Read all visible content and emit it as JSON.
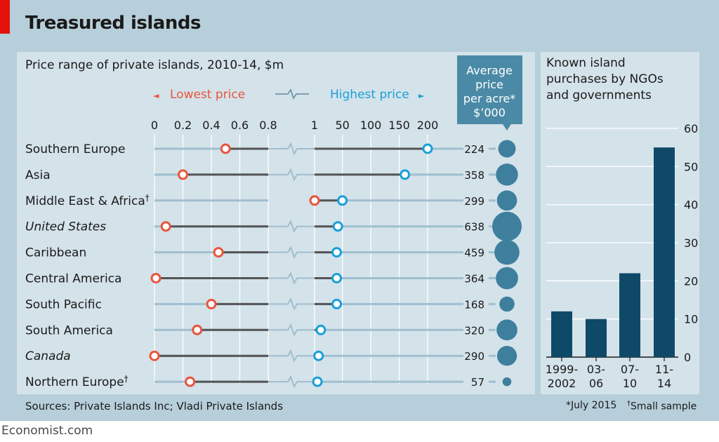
{
  "header": {
    "title": "Treasured islands"
  },
  "chart_data": [
    {
      "type": "dot-range",
      "title": "Price range of private islands, 2010-14, $m",
      "legend": {
        "low": "Lowest price",
        "high": "Highest price",
        "low_arrow": "◄",
        "high_arrow": "►"
      },
      "low_axis": {
        "ticks": [
          "0",
          "0.2",
          "0.4",
          "0.6",
          "0.8"
        ],
        "tick_values": [
          0,
          0.2,
          0.4,
          0.6,
          0.8
        ],
        "range": [
          0,
          0.8
        ]
      },
      "high_axis": {
        "ticks": [
          "1",
          "50",
          "100",
          "150",
          "200"
        ],
        "tick_values": [
          1,
          50,
          100,
          150,
          200
        ],
        "range": [
          1,
          200
        ]
      },
      "avg_label": [
        "Average",
        "price",
        "per acre*",
        "$’000"
      ],
      "rows": [
        {
          "region": "Southern Europe",
          "dagger": "",
          "italic": false,
          "low": 0.5,
          "high": 200,
          "avg": 224
        },
        {
          "region": "Asia",
          "dagger": "",
          "italic": false,
          "low": 0.2,
          "high": 160,
          "avg": 358
        },
        {
          "region": "Middle East & Africa",
          "dagger": "†",
          "italic": false,
          "low": 1,
          "high": 50,
          "avg": 299
        },
        {
          "region": "United States",
          "dagger": "",
          "italic": true,
          "low": 0.08,
          "high": 42,
          "avg": 638
        },
        {
          "region": "Caribbean",
          "dagger": "",
          "italic": false,
          "low": 0.45,
          "high": 40,
          "avg": 459
        },
        {
          "region": "Central America",
          "dagger": "",
          "italic": false,
          "low": 0.01,
          "high": 40,
          "avg": 364
        },
        {
          "region": "South Pacific",
          "dagger": "",
          "italic": false,
          "low": 0.4,
          "high": 40,
          "avg": 168
        },
        {
          "region": "South America",
          "dagger": "",
          "italic": false,
          "low": 0.3,
          "high": 12,
          "avg": 320
        },
        {
          "region": "Canada",
          "dagger": "",
          "italic": true,
          "low": 0.0,
          "high": 8,
          "avg": 290
        },
        {
          "region": "Northern Europe",
          "dagger": "†",
          "italic": false,
          "low": 0.25,
          "high": 6,
          "avg": 57
        }
      ]
    },
    {
      "type": "bar",
      "title": [
        "Known island",
        "purchases by NGOs",
        "and governments"
      ],
      "categories": [
        [
          "1999-",
          "2002"
        ],
        [
          "03-",
          "06"
        ],
        [
          "07-",
          "10"
        ],
        [
          "11-",
          "14"
        ]
      ],
      "values": [
        12,
        10,
        22,
        55
      ],
      "ylim": [
        0,
        60
      ],
      "yticks": [
        0,
        10,
        20,
        30,
        40,
        50,
        60
      ]
    }
  ],
  "footer": {
    "sources": "Sources: Private Islands Inc; Vladi Private Islands",
    "note_date": "*July 2015",
    "note_sample_mark": "†",
    "note_sample": "Small sample",
    "brand": "Economist.com"
  },
  "colors": {
    "low": "#e8553d",
    "high": "#1a9fd8",
    "line_dark": "#545454",
    "line_light": "#9fbecf",
    "avg_bubble": "#3f7f9e",
    "avg_box": "#4b8aa6",
    "bar": "#0e4a67"
  }
}
